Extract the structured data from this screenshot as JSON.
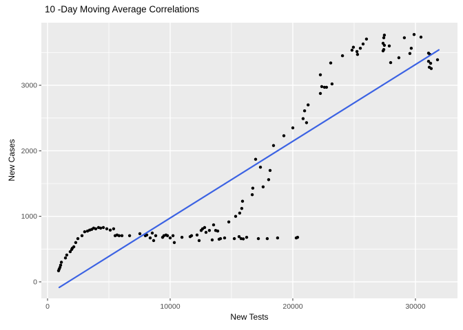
{
  "window": {
    "background": "#FFFFFF"
  },
  "chart_data": {
    "type": "scatter",
    "title": "10 -Day Moving Average Correlations",
    "xlabel": "New Tests",
    "ylabel": "New Cases",
    "xlim": [
      -506,
      33430
    ],
    "ylim": [
      -252,
      3955
    ],
    "x_ticks": [
      0,
      10000,
      20000,
      30000
    ],
    "x_tick_labels": [
      "0",
      "10000",
      "20000",
      "30000"
    ],
    "x_minor_ticks": [
      5000,
      15000,
      25000
    ],
    "y_ticks": [
      0,
      1000,
      2000,
      3000
    ],
    "y_tick_labels": [
      "0",
      "1000",
      "2000",
      "3000"
    ],
    "y_minor_ticks": [
      500,
      1500,
      2500,
      3500
    ],
    "grid": true,
    "legend": false,
    "panel_background": "#EBEBEB",
    "grid_color": "#FFFFFF",
    "point_color": "#000000",
    "tick_color": "#333333",
    "tick_label_color": "#4D4D4D",
    "trend_line": {
      "type": "linear",
      "color": "#3B62E3",
      "x": [
        955,
        31910
      ],
      "y": [
        -85,
        3540
      ]
    },
    "points": [
      [
        900,
        170
      ],
      [
        950,
        195
      ],
      [
        1010,
        220
      ],
      [
        1070,
        255
      ],
      [
        1130,
        300
      ],
      [
        1460,
        365
      ],
      [
        1570,
        410
      ],
      [
        1850,
        460
      ],
      [
        1970,
        495
      ],
      [
        2020,
        515
      ],
      [
        2140,
        535
      ],
      [
        2300,
        600
      ],
      [
        2470,
        660
      ],
      [
        2810,
        705
      ],
      [
        3030,
        765
      ],
      [
        3260,
        775
      ],
      [
        3430,
        790
      ],
      [
        3600,
        800
      ],
      [
        3760,
        820
      ],
      [
        3930,
        810
      ],
      [
        4160,
        830
      ],
      [
        4330,
        820
      ],
      [
        4550,
        830
      ],
      [
        4830,
        810
      ],
      [
        5110,
        790
      ],
      [
        5390,
        810
      ],
      [
        5510,
        705
      ],
      [
        5670,
        715
      ],
      [
        5840,
        705
      ],
      [
        6070,
        705
      ],
      [
        6690,
        705
      ],
      [
        7530,
        735
      ],
      [
        7980,
        705
      ],
      [
        8090,
        715
      ],
      [
        8370,
        670
      ],
      [
        8540,
        745
      ],
      [
        8650,
        630
      ],
      [
        8820,
        705
      ],
      [
        9380,
        680
      ],
      [
        9490,
        705
      ],
      [
        9660,
        715
      ],
      [
        9780,
        705
      ],
      [
        10000,
        670
      ],
      [
        10230,
        705
      ],
      [
        10340,
        600
      ],
      [
        10960,
        680
      ],
      [
        11630,
        690
      ],
      [
        11740,
        705
      ],
      [
        12190,
        715
      ],
      [
        12360,
        630
      ],
      [
        12530,
        785
      ],
      [
        12640,
        810
      ],
      [
        12810,
        830
      ],
      [
        12920,
        755
      ],
      [
        13200,
        785
      ],
      [
        13430,
        640
      ],
      [
        13540,
        870
      ],
      [
        13710,
        785
      ],
      [
        13880,
        775
      ],
      [
        13990,
        650
      ],
      [
        14100,
        660
      ],
      [
        14440,
        670
      ],
      [
        14780,
        915
      ],
      [
        15230,
        660
      ],
      [
        15620,
        690
      ],
      [
        15790,
        660
      ],
      [
        15960,
        655
      ],
      [
        16240,
        680
      ],
      [
        17190,
        660
      ],
      [
        17920,
        660
      ],
      [
        18760,
        670
      ],
      [
        20280,
        670
      ],
      [
        20390,
        680
      ],
      [
        15340,
        1000
      ],
      [
        15670,
        1050
      ],
      [
        15840,
        1120
      ],
      [
        15900,
        1230
      ],
      [
        16690,
        1330
      ],
      [
        16740,
        1430
      ],
      [
        16970,
        1870
      ],
      [
        17360,
        1750
      ],
      [
        17580,
        1450
      ],
      [
        18030,
        1560
      ],
      [
        18150,
        1700
      ],
      [
        18430,
        2080
      ],
      [
        19270,
        2230
      ],
      [
        20000,
        2350
      ],
      [
        20840,
        2490
      ],
      [
        20960,
        2610
      ],
      [
        21120,
        2430
      ],
      [
        21250,
        2700
      ],
      [
        22250,
        2875
      ],
      [
        22250,
        3160
      ],
      [
        22360,
        2980
      ],
      [
        22580,
        2970
      ],
      [
        22750,
        2970
      ],
      [
        23090,
        3340
      ],
      [
        23200,
        3020
      ],
      [
        24050,
        3450
      ],
      [
        24830,
        3535
      ],
      [
        24940,
        3580
      ],
      [
        25230,
        3515
      ],
      [
        25280,
        3470
      ],
      [
        25510,
        3565
      ],
      [
        25730,
        3630
      ],
      [
        26010,
        3705
      ],
      [
        27360,
        3640
      ],
      [
        27420,
        3725
      ],
      [
        27470,
        3765
      ],
      [
        27470,
        3610
      ],
      [
        27360,
        3525
      ],
      [
        27420,
        3545
      ],
      [
        27870,
        3600
      ],
      [
        27980,
        3345
      ],
      [
        28650,
        3420
      ],
      [
        29100,
        3725
      ],
      [
        29550,
        3485
      ],
      [
        29660,
        3565
      ],
      [
        29890,
        3775
      ],
      [
        30450,
        3735
      ],
      [
        31070,
        3490
      ],
      [
        31180,
        3470
      ],
      [
        31070,
        3365
      ],
      [
        31240,
        3335
      ],
      [
        31130,
        3275
      ],
      [
        31290,
        3255
      ],
      [
        31800,
        3390
      ]
    ]
  }
}
